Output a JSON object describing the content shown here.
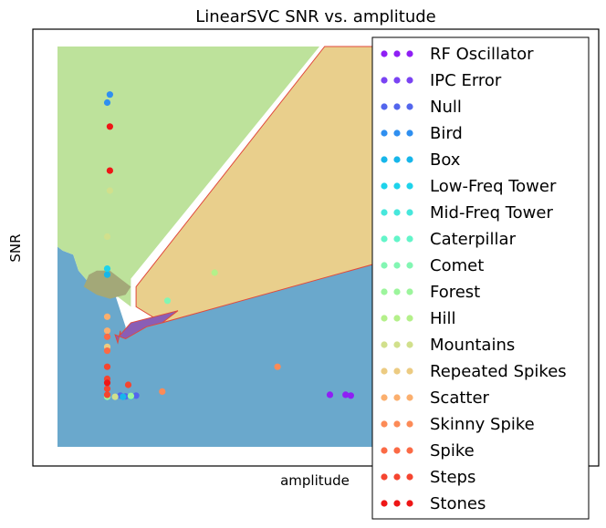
{
  "chart_data": {
    "type": "scatter",
    "title": "LinearSVC SNR vs. amplitude",
    "xlabel": "amplitude",
    "ylabel": "SNR",
    "xlim": [
      0,
      100
    ],
    "ylim": [
      0,
      100
    ],
    "ticks_visible": false,
    "legend_position": "right",
    "regions": [
      {
        "name": "Null",
        "color": "#6aa8cc",
        "opacity": 1.0,
        "points": [
          [
            0,
            0
          ],
          [
            0,
            50
          ],
          [
            1,
            49
          ],
          [
            3,
            48
          ],
          [
            4,
            44
          ],
          [
            6,
            41
          ],
          [
            9,
            40
          ],
          [
            11,
            38
          ],
          [
            11.5,
            36
          ],
          [
            13,
            30
          ],
          [
            13,
            27
          ],
          [
            17,
            30
          ],
          [
            20,
            31
          ],
          [
            100,
            100
          ],
          [
            100,
            0
          ]
        ]
      },
      {
        "name": "Hill",
        "color": "#bde29b",
        "opacity": 1.0,
        "points": [
          [
            0,
            50
          ],
          [
            0,
            100
          ],
          [
            50,
            100
          ],
          [
            14,
            42
          ],
          [
            14,
            35
          ],
          [
            13,
            36
          ],
          [
            11,
            38
          ],
          [
            9,
            40
          ],
          [
            6,
            41
          ],
          [
            4,
            44
          ],
          [
            3,
            48
          ],
          [
            1,
            49
          ]
        ]
      },
      {
        "name": "Repeated Spikes",
        "color": "#e9cf8c",
        "opacity": 1.0,
        "points": [
          [
            51,
            100
          ],
          [
            100,
            100
          ],
          [
            100,
            60
          ],
          [
            20,
            31
          ],
          [
            15,
            35
          ],
          [
            15,
            40
          ]
        ]
      },
      {
        "name": "IPC Error",
        "color": "#8a5eb5",
        "opacity": 1.0,
        "points": [
          [
            11.5,
            26
          ],
          [
            12,
            29
          ],
          [
            12,
            28
          ],
          [
            14,
            31
          ],
          [
            23,
            34
          ],
          [
            20,
            31
          ],
          [
            17,
            30
          ],
          [
            13,
            27
          ],
          [
            11,
            28
          ]
        ]
      },
      {
        "name": "Mountains",
        "color": "#a3a878",
        "opacity": 1.0,
        "points": [
          [
            5,
            40
          ],
          [
            6,
            43
          ],
          [
            7.5,
            44
          ],
          [
            10,
            44
          ],
          [
            14,
            40
          ],
          [
            13,
            38
          ],
          [
            10,
            37
          ],
          [
            7.5,
            38
          ]
        ]
      }
    ],
    "boundary_color": "#e04a3c",
    "series": [
      {
        "name": "RF Oscillator",
        "color": "#8f1ff5",
        "points": [
          [
            52,
            13
          ],
          [
            55,
            13
          ],
          [
            56,
            12.8
          ]
        ]
      },
      {
        "name": "IPC Error",
        "color": "#7a43f3",
        "points": []
      },
      {
        "name": "Null",
        "color": "#5366ed",
        "points": [
          [
            15,
            12.8
          ],
          [
            12,
            12.8
          ],
          [
            13,
            12.6
          ]
        ]
      },
      {
        "name": "Bird",
        "color": "#2f8ff0",
        "points": [
          [
            10,
            88
          ],
          [
            9.5,
            86
          ],
          [
            11,
            12.5
          ]
        ]
      },
      {
        "name": "Box",
        "color": "#17b6ea",
        "points": [
          [
            9.5,
            43
          ],
          [
            9.5,
            12.9
          ],
          [
            12.5,
            12.5
          ],
          [
            14,
            12.6
          ]
        ]
      },
      {
        "name": "Low-Freq Tower",
        "color": "#1ed3eb",
        "points": [
          [
            9.5,
            44.5
          ],
          [
            9.5,
            12.7
          ]
        ]
      },
      {
        "name": "Mid-Freq Tower",
        "color": "#47e7dc",
        "points": [
          [
            9.5,
            12.5
          ]
        ]
      },
      {
        "name": "Caterpillar",
        "color": "#63f5c9",
        "points": [
          [
            9.5,
            12.7
          ]
        ]
      },
      {
        "name": "Comet",
        "color": "#83f6b3",
        "points": [
          [
            21,
            36.5
          ]
        ]
      },
      {
        "name": "Forest",
        "color": "#9cf59c",
        "points": [
          [
            9.5,
            12.5
          ],
          [
            14,
            12.7
          ]
        ]
      },
      {
        "name": "Hill",
        "color": "#b4f08a",
        "points": [
          [
            30,
            43.5
          ]
        ]
      },
      {
        "name": "Mountains",
        "color": "#d1e08c",
        "points": [
          [
            10,
            64
          ],
          [
            9.5,
            52.5
          ],
          [
            11,
            12.5
          ]
        ]
      },
      {
        "name": "Repeated Spikes",
        "color": "#eccb82",
        "points": [
          [
            9.5,
            25
          ]
        ]
      },
      {
        "name": "Scatter",
        "color": "#fbaf6e",
        "points": [
          [
            9.5,
            32.5
          ],
          [
            9.5,
            29
          ]
        ]
      },
      {
        "name": "Skinny Spike",
        "color": "#fc8b57",
        "points": [
          [
            42,
            20
          ],
          [
            20,
            13.8
          ]
        ]
      },
      {
        "name": "Spike",
        "color": "#fb6a45",
        "points": [
          [
            9.5,
            27.5
          ],
          [
            9.5,
            24
          ]
        ]
      },
      {
        "name": "Steps",
        "color": "#f54530",
        "points": [
          [
            9.5,
            20
          ],
          [
            9.5,
            17
          ],
          [
            9.5,
            14.5
          ],
          [
            13.5,
            15.5
          ],
          [
            9.5,
            13
          ]
        ]
      },
      {
        "name": "Stones",
        "color": "#ee1616",
        "points": [
          [
            10,
            80
          ],
          [
            10,
            69
          ],
          [
            9.5,
            16
          ]
        ]
      }
    ]
  }
}
